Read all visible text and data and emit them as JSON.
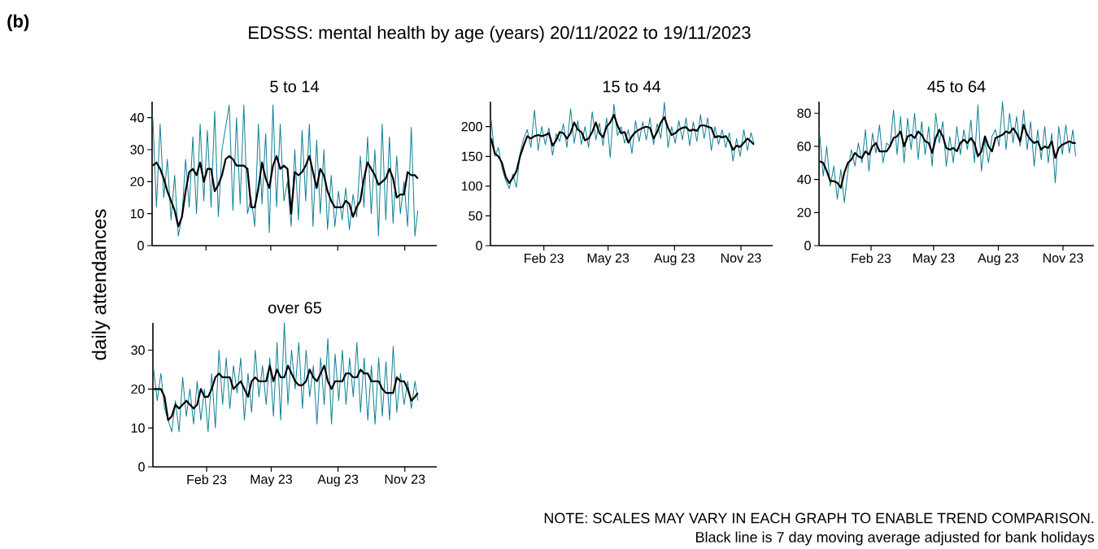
{
  "chart_data": [
    {
      "type": "line",
      "title": "5 to 14",
      "ylabel": "daily attendances",
      "annotations": [
        "(b)",
        "EDSSS: mental health by age (years) 20/11/2022 to 19/11/2023",
        "NOTE: SCALES MAY VARY IN EACH GRAPH TO ENABLE TREND COMPARISON.",
        "Black line is 7 day moving average adjusted for bank holidays"
      ],
      "xlim": [
        "2022-11-19",
        "2023-12-15"
      ],
      "ylim": [
        0,
        45
      ],
      "yticks": [
        0,
        10,
        20,
        30,
        40
      ],
      "tick_labels": "y",
      "xticks": [
        {
          "value": "2023-02-01",
          "label": null
        },
        {
          "value": "2023-05-01",
          "label": null
        },
        {
          "value": "2023-08-01",
          "label": null
        },
        {
          "value": "2023-11-01",
          "label": null
        }
      ],
      "x": [
        "2022-11-20",
        "2022-11-25",
        "2022-11-30",
        "2022-12-05",
        "2022-12-10",
        "2022-12-15",
        "2022-12-20",
        "2022-12-25",
        "2022-12-30",
        "2023-01-04",
        "2023-01-09",
        "2023-01-14",
        "2023-01-19",
        "2023-01-24",
        "2023-01-29",
        "2023-02-03",
        "2023-02-08",
        "2023-02-13",
        "2023-02-18",
        "2023-02-23",
        "2023-02-28",
        "2023-03-05",
        "2023-03-10",
        "2023-03-15",
        "2023-03-20",
        "2023-03-25",
        "2023-03-30",
        "2023-04-04",
        "2023-04-09",
        "2023-04-14",
        "2023-04-19",
        "2023-04-24",
        "2023-04-29",
        "2023-05-04",
        "2023-05-09",
        "2023-05-14",
        "2023-05-19",
        "2023-05-24",
        "2023-05-29",
        "2023-06-03",
        "2023-06-08",
        "2023-06-13",
        "2023-06-18",
        "2023-06-23",
        "2023-06-28",
        "2023-07-03",
        "2023-07-08",
        "2023-07-13",
        "2023-07-18",
        "2023-07-23",
        "2023-07-28",
        "2023-08-02",
        "2023-08-07",
        "2023-08-12",
        "2023-08-17",
        "2023-08-22",
        "2023-08-27",
        "2023-09-01",
        "2023-09-06",
        "2023-09-11",
        "2023-09-16",
        "2023-09-21",
        "2023-09-26",
        "2023-10-01",
        "2023-10-06",
        "2023-10-11",
        "2023-10-16",
        "2023-10-21",
        "2023-10-26",
        "2023-10-31",
        "2023-11-05",
        "2023-11-10",
        "2023-11-15",
        "2023-11-19"
      ],
      "series": [
        {
          "color": "#0f8096",
          "values": [
            40,
            12,
            38,
            15,
            27,
            8,
            22,
            3,
            9,
            27,
            12,
            34,
            10,
            38,
            14,
            36,
            12,
            42,
            9,
            30,
            37,
            44,
            11,
            40,
            13,
            44,
            10,
            15,
            6,
            38,
            13,
            35,
            4,
            44,
            12,
            38,
            14,
            20,
            6,
            30,
            8,
            36,
            14,
            38,
            6,
            33,
            10,
            30,
            5,
            22,
            6,
            17,
            8,
            18,
            5,
            16,
            9,
            28,
            12,
            34,
            10,
            30,
            3,
            38,
            8,
            34,
            7,
            28,
            10,
            20,
            6,
            37,
            3,
            11
          ]
        },
        {
          "color": "#000000",
          "values": [
            25,
            26,
            24,
            21,
            17,
            14,
            11,
            6,
            9,
            17,
            23,
            24,
            22,
            26,
            20,
            24,
            24,
            17,
            19,
            22,
            27,
            28,
            27,
            25,
            25,
            25,
            24,
            12,
            12,
            18,
            26,
            21,
            18,
            25,
            28,
            24,
            25,
            24,
            10,
            23,
            22,
            23,
            25,
            28,
            23,
            18,
            24,
            22,
            17,
            14,
            12,
            12,
            12,
            14,
            13,
            9,
            12,
            14,
            21,
            26,
            24,
            22,
            19,
            20,
            21,
            24,
            21,
            15,
            16,
            16,
            23,
            22,
            22,
            21
          ]
        }
      ]
    },
    {
      "type": "line",
      "title": "15 to 44",
      "xlim": [
        "2022-11-19",
        "2023-12-15"
      ],
      "ylim": [
        0,
        242
      ],
      "yticks": [
        0,
        50,
        100,
        150,
        200
      ],
      "xticks": [
        {
          "value": "2023-02-01",
          "label": "Feb 23"
        },
        {
          "value": "2023-05-01",
          "label": "May 23"
        },
        {
          "value": "2023-08-01",
          "label": "Aug 23"
        },
        {
          "value": "2023-11-01",
          "label": "Nov 23"
        }
      ],
      "x": [
        "2022-11-20",
        "2022-11-25",
        "2022-11-30",
        "2022-12-05",
        "2022-12-10",
        "2022-12-15",
        "2022-12-20",
        "2022-12-25",
        "2022-12-30",
        "2023-01-04",
        "2023-01-09",
        "2023-01-14",
        "2023-01-19",
        "2023-01-24",
        "2023-01-29",
        "2023-02-03",
        "2023-02-08",
        "2023-02-13",
        "2023-02-18",
        "2023-02-23",
        "2023-02-28",
        "2023-03-05",
        "2023-03-10",
        "2023-03-15",
        "2023-03-20",
        "2023-03-25",
        "2023-03-30",
        "2023-04-04",
        "2023-04-09",
        "2023-04-14",
        "2023-04-19",
        "2023-04-24",
        "2023-04-29",
        "2023-05-04",
        "2023-05-09",
        "2023-05-14",
        "2023-05-19",
        "2023-05-24",
        "2023-05-29",
        "2023-06-03",
        "2023-06-08",
        "2023-06-13",
        "2023-06-18",
        "2023-06-23",
        "2023-06-28",
        "2023-07-03",
        "2023-07-08",
        "2023-07-13",
        "2023-07-18",
        "2023-07-23",
        "2023-07-28",
        "2023-08-02",
        "2023-08-07",
        "2023-08-12",
        "2023-08-17",
        "2023-08-22",
        "2023-08-27",
        "2023-09-01",
        "2023-09-06",
        "2023-09-11",
        "2023-09-16",
        "2023-09-21",
        "2023-09-26",
        "2023-10-01",
        "2023-10-06",
        "2023-10-11",
        "2023-10-16",
        "2023-10-21",
        "2023-10-26",
        "2023-10-31",
        "2023-11-05",
        "2023-11-10",
        "2023-11-15",
        "2023-11-19"
      ],
      "series": [
        {
          "color": "#0f8096",
          "values": [
            212,
            150,
            165,
            130,
            110,
            96,
            120,
            98,
            155,
            180,
            195,
            165,
            228,
            160,
            200,
            170,
            198,
            152,
            188,
            175,
            205,
            165,
            230,
            172,
            210,
            170,
            200,
            165,
            225,
            178,
            206,
            168,
            215,
            148,
            238,
            185,
            200,
            172,
            195,
            155,
            210,
            175,
            208,
            178,
            215,
            170,
            205,
            180,
            241,
            165,
            200,
            172,
            210,
            178,
            215,
            168,
            208,
            175,
            220,
            180,
            215,
            160,
            200,
            170,
            195,
            165,
            190,
            142,
            180,
            150,
            195,
            160,
            190,
            172
          ]
        },
        {
          "color": "#000000",
          "values": [
            180,
            155,
            150,
            139,
            116,
            105,
            114,
            125,
            150,
            168,
            184,
            180,
            184,
            186,
            184,
            186,
            189,
            168,
            177,
            191,
            189,
            180,
            189,
            207,
            195,
            191,
            177,
            180,
            191,
            207,
            189,
            182,
            200,
            207,
            220,
            202,
            189,
            191,
            173,
            184,
            191,
            195,
            198,
            200,
            198,
            180,
            191,
            207,
            216,
            198,
            186,
            189,
            195,
            198,
            199,
            193,
            195,
            193,
            202,
            202,
            200,
            198,
            182,
            184,
            182,
            184,
            175,
            161,
            168,
            166,
            173,
            180,
            175,
            170
          ]
        }
      ]
    },
    {
      "type": "line",
      "title": "45 to 64",
      "xlim": [
        "2022-11-19",
        "2023-12-15"
      ],
      "ylim": [
        0,
        87
      ],
      "yticks": [
        0,
        20,
        40,
        60,
        80
      ],
      "xticks": [
        {
          "value": "2023-02-01",
          "label": "Feb 23"
        },
        {
          "value": "2023-05-01",
          "label": "May 23"
        },
        {
          "value": "2023-08-01",
          "label": "Aug 23"
        },
        {
          "value": "2023-11-01",
          "label": "Nov 23"
        }
      ],
      "x": [
        "2022-11-20",
        "2022-11-25",
        "2022-11-30",
        "2022-12-05",
        "2022-12-10",
        "2022-12-15",
        "2022-12-20",
        "2022-12-25",
        "2022-12-30",
        "2023-01-04",
        "2023-01-09",
        "2023-01-14",
        "2023-01-19",
        "2023-01-24",
        "2023-01-29",
        "2023-02-03",
        "2023-02-08",
        "2023-02-13",
        "2023-02-18",
        "2023-02-23",
        "2023-02-28",
        "2023-03-05",
        "2023-03-10",
        "2023-03-15",
        "2023-03-20",
        "2023-03-25",
        "2023-03-30",
        "2023-04-04",
        "2023-04-09",
        "2023-04-14",
        "2023-04-19",
        "2023-04-24",
        "2023-04-29",
        "2023-05-04",
        "2023-05-09",
        "2023-05-14",
        "2023-05-19",
        "2023-05-24",
        "2023-05-29",
        "2023-06-03",
        "2023-06-08",
        "2023-06-13",
        "2023-06-18",
        "2023-06-23",
        "2023-06-28",
        "2023-07-03",
        "2023-07-08",
        "2023-07-13",
        "2023-07-18",
        "2023-07-23",
        "2023-07-28",
        "2023-08-02",
        "2023-08-07",
        "2023-08-12",
        "2023-08-17",
        "2023-08-22",
        "2023-08-27",
        "2023-09-01",
        "2023-09-06",
        "2023-09-11",
        "2023-09-16",
        "2023-09-21",
        "2023-09-26",
        "2023-10-01",
        "2023-10-06",
        "2023-10-11",
        "2023-10-16",
        "2023-10-21",
        "2023-10-26",
        "2023-10-31",
        "2023-11-05",
        "2023-11-10",
        "2023-11-15",
        "2023-11-19"
      ],
      "series": [
        {
          "color": "#0f8096",
          "values": [
            67,
            42,
            60,
            36,
            48,
            28,
            46,
            26,
            45,
            58,
            48,
            62,
            50,
            70,
            45,
            68,
            56,
            73,
            50,
            62,
            60,
            82,
            55,
            78,
            50,
            77,
            58,
            80,
            52,
            75,
            55,
            72,
            48,
            80,
            62,
            75,
            48,
            66,
            50,
            72,
            55,
            70,
            58,
            76,
            50,
            85,
            45,
            64,
            50,
            66,
            70,
            60,
            87,
            58,
            80,
            62,
            78,
            60,
            82,
            58,
            75,
            48,
            70,
            52,
            72,
            50,
            68,
            38,
            72,
            55,
            73,
            56,
            70,
            54
          ]
        },
        {
          "color": "#000000",
          "values": [
            51,
            50,
            45,
            39,
            39,
            38,
            35,
            44,
            50,
            52,
            56,
            54,
            53,
            57,
            55,
            60,
            62,
            57,
            57,
            57,
            60,
            65,
            66,
            69,
            60,
            66,
            67,
            65,
            69,
            67,
            63,
            62,
            56,
            65,
            70,
            66,
            59,
            58,
            59,
            57,
            62,
            64,
            62,
            65,
            62,
            54,
            57,
            66,
            60,
            57,
            65,
            66,
            67,
            69,
            68,
            71,
            68,
            63,
            73,
            67,
            64,
            62,
            63,
            58,
            60,
            59,
            63,
            53,
            59,
            61,
            62,
            63,
            62,
            62
          ]
        }
      ]
    },
    {
      "type": "line",
      "title": "over 65",
      "xlim": [
        "2022-11-19",
        "2023-12-15"
      ],
      "ylim": [
        0,
        37
      ],
      "yticks": [
        0,
        10,
        20,
        30
      ],
      "xticks": [
        {
          "value": "2023-02-01",
          "label": "Feb 23"
        },
        {
          "value": "2023-05-01",
          "label": "May 23"
        },
        {
          "value": "2023-08-01",
          "label": "Aug 23"
        },
        {
          "value": "2023-11-01",
          "label": "Nov 23"
        }
      ],
      "x": [
        "2022-11-20",
        "2022-11-25",
        "2022-11-30",
        "2022-12-05",
        "2022-12-10",
        "2022-12-15",
        "2022-12-20",
        "2022-12-25",
        "2022-12-30",
        "2023-01-04",
        "2023-01-09",
        "2023-01-14",
        "2023-01-19",
        "2023-01-24",
        "2023-01-29",
        "2023-02-03",
        "2023-02-08",
        "2023-02-13",
        "2023-02-18",
        "2023-02-23",
        "2023-02-28",
        "2023-03-05",
        "2023-03-10",
        "2023-03-15",
        "2023-03-20",
        "2023-03-25",
        "2023-03-30",
        "2023-04-04",
        "2023-04-09",
        "2023-04-14",
        "2023-04-19",
        "2023-04-24",
        "2023-04-29",
        "2023-05-04",
        "2023-05-09",
        "2023-05-14",
        "2023-05-19",
        "2023-05-24",
        "2023-05-29",
        "2023-06-03",
        "2023-06-08",
        "2023-06-13",
        "2023-06-18",
        "2023-06-23",
        "2023-06-28",
        "2023-07-03",
        "2023-07-08",
        "2023-07-13",
        "2023-07-18",
        "2023-07-23",
        "2023-07-28",
        "2023-08-02",
        "2023-08-07",
        "2023-08-12",
        "2023-08-17",
        "2023-08-22",
        "2023-08-27",
        "2023-09-01",
        "2023-09-06",
        "2023-09-11",
        "2023-09-16",
        "2023-09-21",
        "2023-09-26",
        "2023-10-01",
        "2023-10-06",
        "2023-10-11",
        "2023-10-16",
        "2023-10-21",
        "2023-10-26",
        "2023-10-31",
        "2023-11-05",
        "2023-11-10",
        "2023-11-15",
        "2023-11-19"
      ],
      "series": [
        {
          "color": "#0f8096",
          "values": [
            25,
            17,
            24,
            15,
            12,
            9,
            17,
            9,
            23,
            13,
            20,
            11,
            22,
            12,
            20,
            9,
            24,
            10,
            30,
            16,
            28,
            15,
            26,
            19,
            28,
            12,
            24,
            14,
            30,
            18,
            26,
            16,
            28,
            13,
            32,
            12,
            37,
            16,
            30,
            20,
            32,
            15,
            30,
            18,
            26,
            11,
            28,
            16,
            33,
            11,
            29,
            17,
            30,
            16,
            28,
            18,
            32,
            14,
            28,
            12,
            26,
            11,
            28,
            13,
            27,
            12,
            31,
            14,
            24,
            16,
            22,
            15,
            22,
            17
          ]
        },
        {
          "color": "#000000",
          "values": [
            20,
            20,
            20,
            18,
            12,
            13,
            16,
            15,
            16,
            17,
            16,
            15,
            16,
            20,
            18,
            18,
            20,
            23,
            24,
            23,
            23,
            23,
            20,
            21,
            22,
            20,
            18,
            22,
            23,
            22,
            22,
            22,
            26,
            22,
            25,
            23,
            23,
            26,
            24,
            22,
            21,
            21,
            22,
            25,
            23,
            22,
            24,
            26,
            22,
            20,
            22,
            22,
            22,
            24,
            24,
            23,
            23,
            25,
            24,
            24,
            22,
            22,
            22,
            20,
            19,
            19,
            19,
            23,
            22,
            22,
            20,
            17,
            18,
            19
          ]
        }
      ]
    }
  ]
}
